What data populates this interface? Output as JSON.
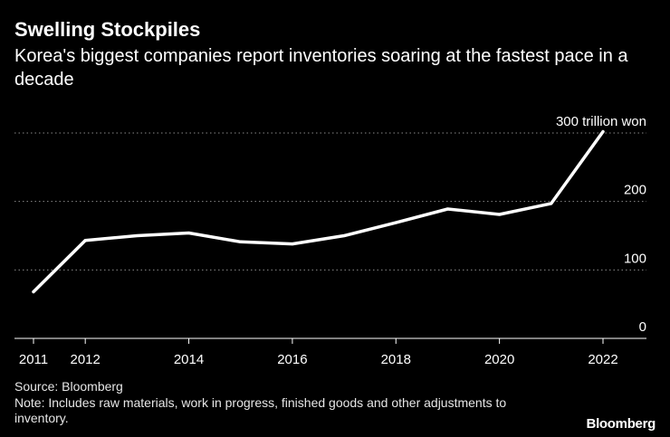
{
  "header": {
    "title": "Swelling Stockpiles",
    "subtitle": "Korea's biggest companies report inventories soaring at the fastest pace in a decade"
  },
  "footer": {
    "source": "Source: Bloomberg",
    "note": "Note: Includes raw materials, work in progress, finished goods and other adjustments to inventory.",
    "logo": "Bloomberg"
  },
  "colors": {
    "background": "#000000",
    "line": "#ffffff",
    "grid": "#8a8a8a",
    "text": "#ffffff"
  },
  "chart_data": {
    "type": "line",
    "title": "Swelling Stockpiles",
    "subtitle": "Korea's biggest companies report inventories soaring at the fastest pace in a decade",
    "unit_label": "300 trillion won",
    "x": [
      2011,
      2012,
      2013,
      2014,
      2015,
      2016,
      2017,
      2018,
      2019,
      2020,
      2021,
      2022
    ],
    "x_tick_labels": [
      "2011",
      "2012",
      "2014",
      "2016",
      "2018",
      "2020",
      "2022"
    ],
    "y_ticks": [
      0,
      100,
      200,
      300
    ],
    "y_tick_labels": [
      "0",
      "100",
      "200",
      "300 trillion won"
    ],
    "xlim": [
      2011,
      2022
    ],
    "ylim": [
      0,
      300
    ],
    "grid": true,
    "series": [
      {
        "values": [
          68,
          143,
          150,
          154,
          141,
          138,
          150,
          169,
          189,
          181,
          197,
          302
        ]
      }
    ]
  }
}
